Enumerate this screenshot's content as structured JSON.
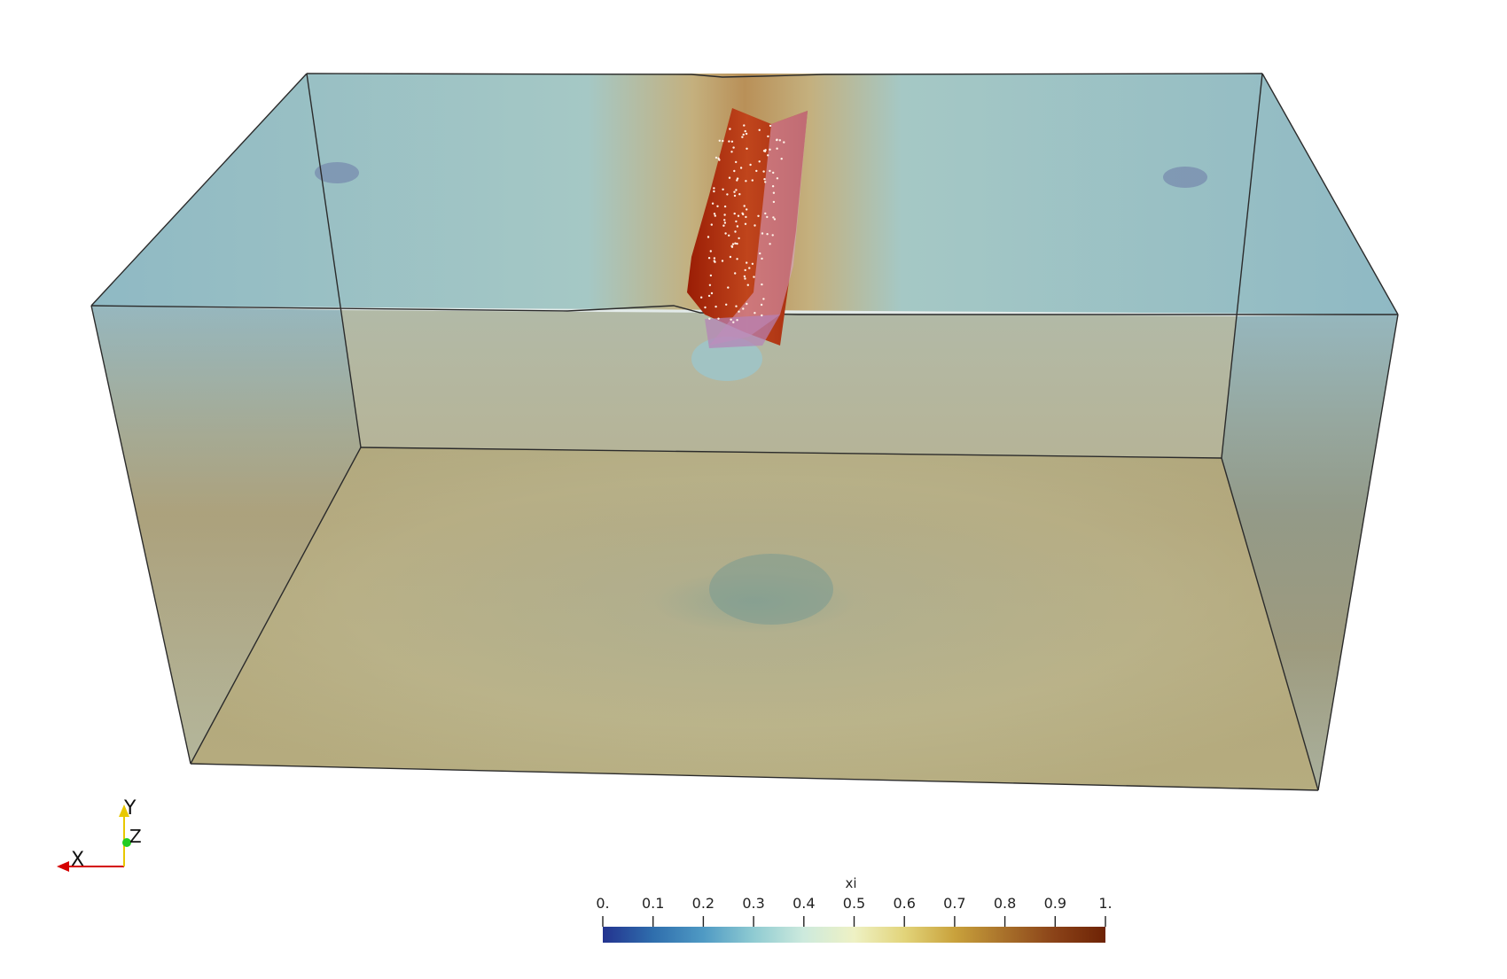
{
  "colorbar": {
    "title": "xi",
    "ticks": [
      "0.",
      "0.1",
      "0.2",
      "0.3",
      "0.4",
      "0.5",
      "0.6",
      "0.7",
      "0.8",
      "0.9",
      "1."
    ],
    "colors": [
      "#23338f",
      "#2f6ead",
      "#4f9ac4",
      "#8fcbd2",
      "#cdeadd",
      "#eef1c4",
      "#e2d47a",
      "#c9a23c",
      "#a8702a",
      "#8a4218",
      "#6e2305"
    ]
  },
  "axes_widget": {
    "x_label": "X",
    "y_label": "Y",
    "z_label": "Z",
    "x_color": "#d40000",
    "y_color": "#e8c800",
    "z_color": "#22cc22"
  }
}
